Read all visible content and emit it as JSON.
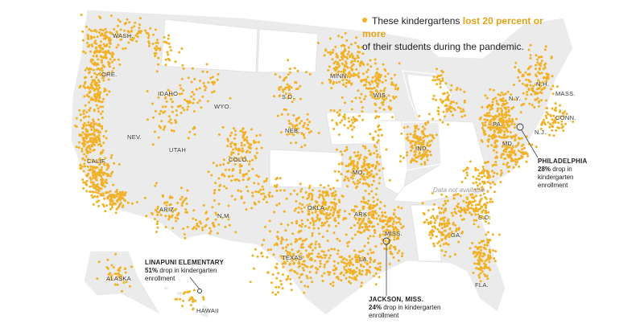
{
  "legend": {
    "text_before": "These kindergartens ",
    "highlight": "lost 20 percent or more",
    "text_after": "of their students during the pandemic.",
    "accent_color": "#f2b125"
  },
  "no_data_label": "Data not available",
  "callouts": {
    "philadelphia": {
      "title": "PHILADELPHIA",
      "pct": "28%",
      "rest_1": " drop in",
      "rest_2": "kindergarten",
      "rest_3": "enrollment"
    },
    "jackson": {
      "title": "JACKSON, MISS.",
      "pct": "24%",
      "rest_1": " drop in kindergarten",
      "rest_2": "enrollment"
    },
    "linapuni": {
      "title": "LINAPUNI ELEMENTARY",
      "pct": "51%",
      "rest_1": " drop in kindergarten",
      "rest_2": "enrollment"
    }
  },
  "state_labels": {
    "wash": "WASH.",
    "ore": "ORE.",
    "idaho": "IDAHO",
    "wyo": "WYO.",
    "nev": "NEV.",
    "utah": "UTAH",
    "calif": "CALIF.",
    "colo": "COLO.",
    "ariz": "ARIZ.",
    "nm": "N.M.",
    "sd": "S.D.",
    "neb": "NEB.",
    "minn": "MINN.",
    "wis": "WIS.",
    "ind": "IND.",
    "mo": "MO.",
    "okla": "OKLA.",
    "ark": "ARK.",
    "texas": "TEXAS",
    "la": "LA.",
    "miss": "MISS.",
    "ga": "GA.",
    "sc": "S.C.",
    "fla": "FLA.",
    "pa": "PA.",
    "ny": "N.Y.",
    "nh": "N.H.",
    "mass": "MASS.",
    "conn": "CONN.",
    "nj": "N.J.",
    "md": "MD.",
    "alaska": "ALASKA",
    "hawaii": "HAWAII"
  }
}
